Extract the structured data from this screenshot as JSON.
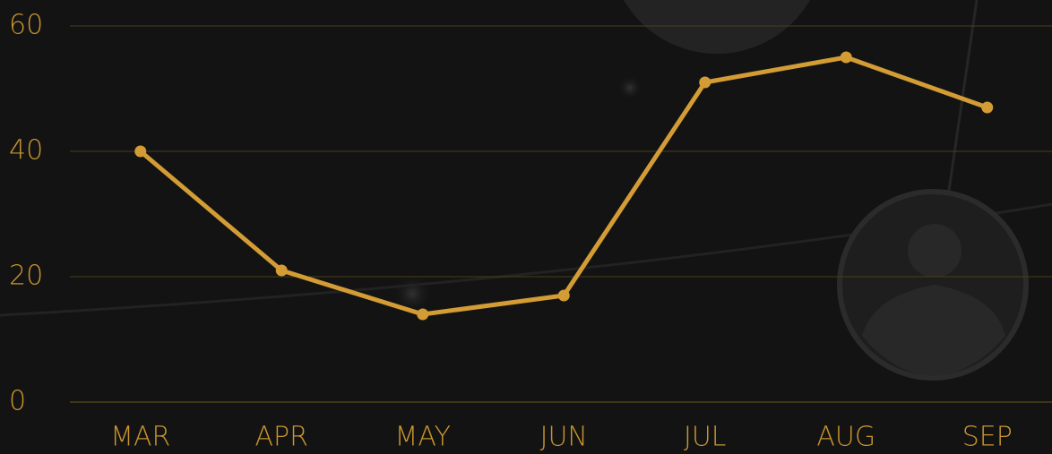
{
  "chart_data": {
    "type": "line",
    "categories": [
      "MAR",
      "APR",
      "MAY",
      "JUN",
      "JUL",
      "AUG",
      "SEP"
    ],
    "series": [
      {
        "color": "#d39c35",
        "values": [
          40,
          21,
          14,
          17,
          51,
          55,
          47
        ]
      }
    ],
    "ylim": [
      0,
      60
    ],
    "yticks": [
      0,
      20,
      40,
      60
    ],
    "grid": true
  }
}
